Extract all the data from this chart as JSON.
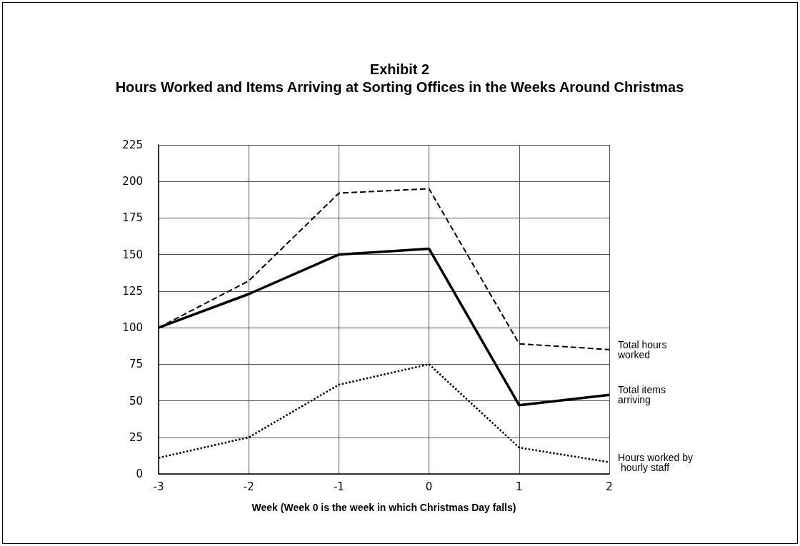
{
  "chart_data": {
    "type": "line",
    "title": "Exhibit 2",
    "subtitle": "Hours Worked and Items Arriving at Sorting Offices in the Weeks Around Christmas",
    "xlabel": "Week (Week 0 is the week in which Christmas Day falls)",
    "x": [
      -3,
      -2,
      -1,
      0,
      1,
      2
    ],
    "series": [
      {
        "name": "Total hours worked",
        "color": "#000000",
        "line_style": "dashed",
        "values": [
          100,
          132,
          192,
          195,
          89,
          85
        ]
      },
      {
        "name": "Total items arriving",
        "color": "#000000",
        "line_style": "solid",
        "values": [
          100,
          123,
          150,
          154,
          47,
          54
        ]
      },
      {
        "name": "Hours worked by hourly staff",
        "color": "#000000",
        "line_style": "dotted",
        "values": [
          11,
          25,
          61,
          75,
          18,
          8
        ]
      }
    ],
    "xlim": [
      -3,
      2
    ],
    "xticks": [
      -3,
      -2,
      -1,
      0,
      1,
      2
    ],
    "ylim": [
      0,
      225
    ],
    "yticks": [
      0,
      25,
      50,
      75,
      100,
      125,
      150,
      175,
      200,
      225
    ],
    "grid": true,
    "legend": false,
    "marker": "none"
  }
}
